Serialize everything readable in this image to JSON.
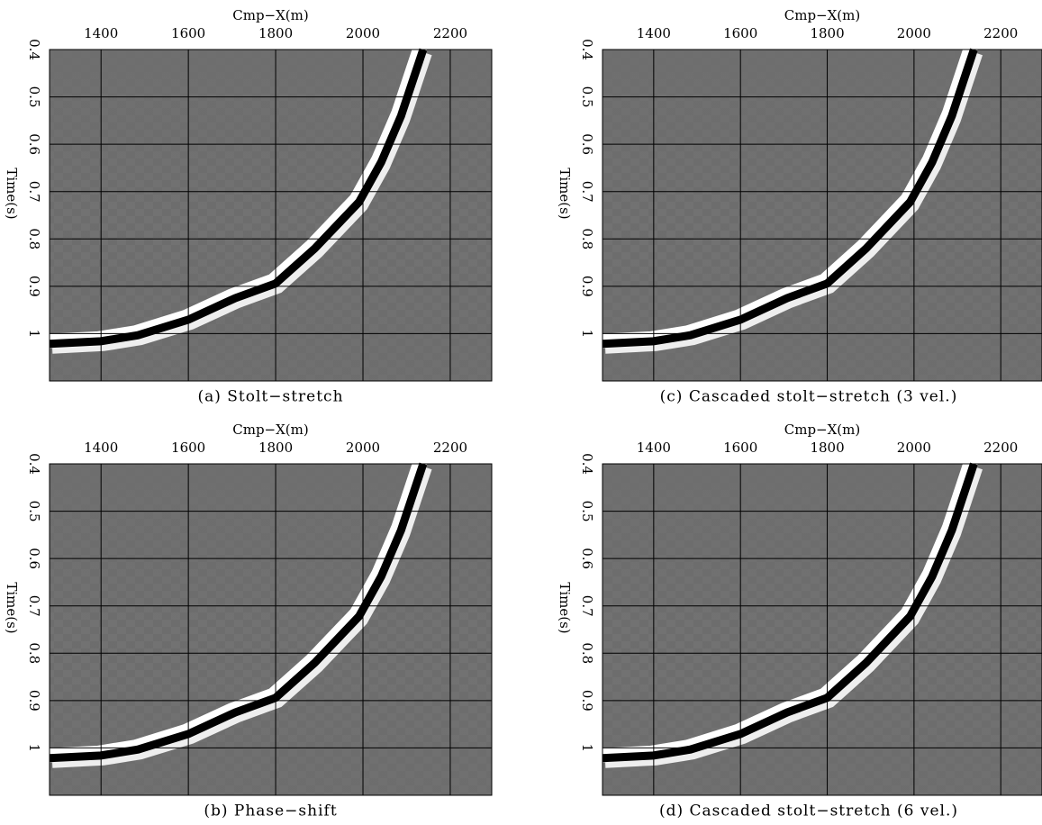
{
  "chart_data": [
    {
      "type": "seismic",
      "title": "(a) Stolt−stretch",
      "xlabel": "Cmp−X(m)",
      "ylabel": "Time(s)",
      "xlim": [
        1282,
        2295
      ],
      "ylim": [
        1.1,
        0.4
      ],
      "xticks": [
        1400,
        1600,
        1800,
        2000,
        2200
      ],
      "yticks": [
        0.4,
        0.5,
        0.6,
        0.7,
        0.8,
        0.9,
        1
      ],
      "grid": true
    },
    {
      "type": "seismic",
      "title": "(b) Phase−shift",
      "xlabel": "Cmp−X(m)",
      "ylabel": "Time(s)",
      "xlim": [
        1282,
        2295
      ],
      "ylim": [
        1.1,
        0.4
      ],
      "xticks": [
        1400,
        1600,
        1800,
        2000,
        2200
      ],
      "yticks": [
        0.4,
        0.5,
        0.6,
        0.7,
        0.8,
        0.9,
        1
      ],
      "grid": true
    },
    {
      "type": "seismic",
      "title": "(c) Cascaded stolt−stretch (3 vel.)",
      "xlabel": "Cmp−X(m)",
      "ylabel": "Time(s)",
      "xlim": [
        1282,
        2295
      ],
      "ylim": [
        1.1,
        0.4
      ],
      "xticks": [
        1400,
        1600,
        1800,
        2000,
        2200
      ],
      "yticks": [
        0.4,
        0.5,
        0.6,
        0.7,
        0.8,
        0.9,
        1
      ],
      "grid": true
    },
    {
      "type": "seismic",
      "title": "(d) Cascaded stolt−stretch (6 vel.)",
      "xlabel": "Cmp−X(m)",
      "ylabel": "Time(s)",
      "xlim": [
        1282,
        2295
      ],
      "ylim": [
        1.1,
        0.4
      ],
      "xticks": [
        1400,
        1600,
        1800,
        2000,
        2200
      ],
      "yticks": [
        0.4,
        0.5,
        0.6,
        0.7,
        0.8,
        0.9,
        1
      ],
      "grid": true
    }
  ]
}
